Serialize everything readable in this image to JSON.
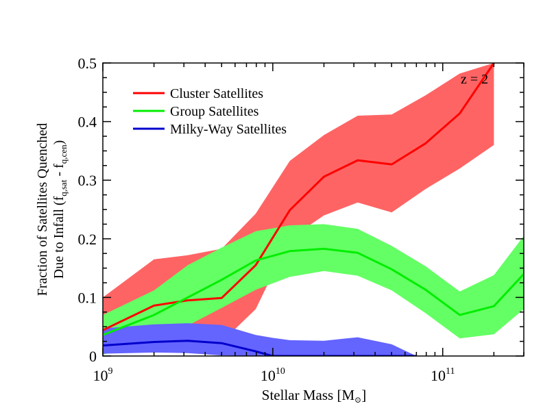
{
  "chart_data": {
    "type": "line",
    "title": "",
    "annotation": "z = 2",
    "xlabel": "Stellar Mass [M",
    "xlabel_symbol": "⊙",
    "xlabel_close": "]",
    "ylabel_line1": "Fraction of Satellites Quenched",
    "ylabel_line2_pre": "Due to Infall (f",
    "ylabel_sub1": "q,sat",
    "ylabel_mid": " - f",
    "ylabel_sub2": "q,cen",
    "ylabel_close": ")",
    "xscale": "log",
    "xlim": [
      1000000000,
      300000000000
    ],
    "ylim": [
      0,
      0.5
    ],
    "x_ticks": [
      {
        "value": 1000000000,
        "base": "10",
        "exp": "9"
      },
      {
        "value": 10000000000,
        "base": "10",
        "exp": "10"
      },
      {
        "value": 100000000000,
        "base": "10",
        "exp": "11"
      }
    ],
    "y_ticks": [
      {
        "value": 0,
        "label": "0"
      },
      {
        "value": 0.1,
        "label": "0.1"
      },
      {
        "value": 0.2,
        "label": "0.2"
      },
      {
        "value": 0.3,
        "label": "0.3"
      },
      {
        "value": 0.4,
        "label": "0.4"
      },
      {
        "value": 0.5,
        "label": "0.5"
      }
    ],
    "legend_position": "top-left",
    "series": [
      {
        "name": "Cluster Satellites",
        "line_color": "#ff0000",
        "band_color": "#ff6464",
        "x": [
          1000000000,
          2000000000,
          3160000000,
          5000000000,
          7940000000,
          12600000000,
          20000000000,
          31600000000,
          50100000000,
          79400000000,
          126000000000,
          200000000000
        ],
        "y": [
          0.044,
          0.086,
          0.095,
          0.099,
          0.155,
          0.249,
          0.306,
          0.334,
          0.327,
          0.363,
          0.414,
          0.5
        ],
        "y_low": [
          0.028,
          0.008,
          0.006,
          0.024,
          0.08,
          0.2,
          0.24,
          0.262,
          0.245,
          0.285,
          0.32,
          0.36
        ],
        "y_high": [
          0.1,
          0.165,
          0.172,
          0.183,
          0.243,
          0.333,
          0.377,
          0.41,
          0.412,
          0.445,
          0.482,
          0.5
        ]
      },
      {
        "name": "Group Satellites",
        "line_color": "#00ee00",
        "band_color": "#64ff64",
        "x": [
          1000000000,
          2000000000,
          3160000000,
          5000000000,
          7940000000,
          12600000000,
          20000000000,
          31600000000,
          50100000000,
          79400000000,
          126000000000,
          200000000000,
          300000000000
        ],
        "y": [
          0.036,
          0.07,
          0.1,
          0.13,
          0.163,
          0.179,
          0.183,
          0.176,
          0.148,
          0.113,
          0.07,
          0.085,
          0.14
        ],
        "y_low": [
          0.002,
          0.028,
          0.052,
          0.082,
          0.113,
          0.135,
          0.145,
          0.137,
          0.112,
          0.073,
          0.03,
          0.037,
          0.08
        ],
        "y_high": [
          0.07,
          0.112,
          0.155,
          0.185,
          0.213,
          0.223,
          0.225,
          0.217,
          0.188,
          0.153,
          0.11,
          0.138,
          0.205
        ]
      },
      {
        "name": "Milky-Way Satellites",
        "line_color": "#0000cc",
        "band_color": "#6464ff",
        "x": [
          1000000000,
          2000000000,
          3160000000,
          5000000000,
          7940000000,
          10000000000,
          12600000000,
          20000000000,
          31600000000,
          50100000000,
          70000000000
        ],
        "y": [
          0.018,
          0.024,
          0.026,
          0.022,
          0.008,
          0,
          0,
          0,
          0,
          0,
          0
        ],
        "y_low": [
          0.004,
          0.006,
          0.005,
          0.001,
          0,
          0,
          0,
          0,
          0,
          0,
          0
        ],
        "y_high": [
          0.047,
          0.054,
          0.056,
          0.053,
          0.036,
          0.031,
          0.027,
          0.026,
          0.032,
          0.02,
          0
        ]
      }
    ]
  }
}
